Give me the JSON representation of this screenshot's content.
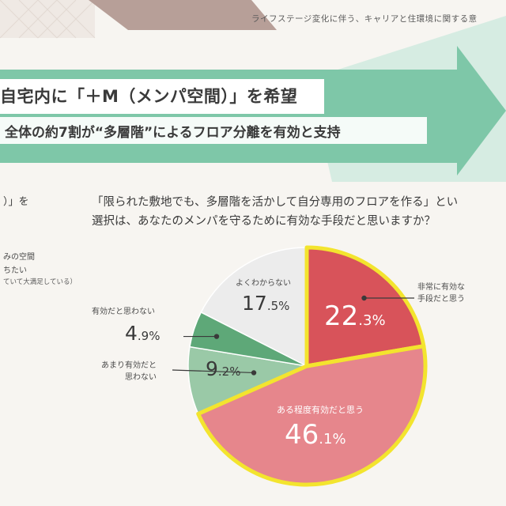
{
  "header": {
    "subtitle": "ライフステージ変化に伴う、キャリアと住環境に関する意"
  },
  "headline": {
    "line1": "自宅内に「＋M（メンパ空間）」を希望",
    "line2": "全体の約7割が“多層階”によるフロア分離を有効と支持"
  },
  "left_panel": {
    "question_fragment": "）」を",
    "line1": "みの空間",
    "line2": "ちたい",
    "line3": "ていて大満足している）"
  },
  "question": {
    "line1": "「限られた敷地でも、多層階を活かして自分専用のフロアを作る」とい",
    "line2": "選択は、あなたのメンパを守るために有効な手段だと思いますか？"
  },
  "colors": {
    "very_effective": "#d8535a",
    "somewhat_effective": "#e6868c",
    "not_very": "#9ac9a7",
    "not_effective": "#5ea878",
    "unknown": "#ececec",
    "highlight_border": "#f3e42e",
    "arrow": "#7ec7a8"
  },
  "chart_data": {
    "type": "pie",
    "title": "",
    "slices": [
      {
        "label_line1": "非常に有効な",
        "label_line2": "手段だと思う",
        "value": 22.3,
        "int": "22",
        "dec": ".3%",
        "highlight": true
      },
      {
        "label_line1": "ある程度有効だと思う",
        "label_line2": "",
        "value": 46.1,
        "int": "46",
        "dec": ".1%",
        "highlight": true
      },
      {
        "label_line1": "あまり有効だと",
        "label_line2": "思わない",
        "value": 9.2,
        "int": "9",
        "dec": ".2%",
        "highlight": false
      },
      {
        "label_line1": "有効だと思わない",
        "label_line2": "",
        "value": 4.9,
        "int": "4",
        "dec": ".9%",
        "highlight": false
      },
      {
        "label_line1": "よくわからない",
        "label_line2": "",
        "value": 17.5,
        "int": "17",
        "dec": ".5%",
        "highlight": false
      }
    ]
  }
}
